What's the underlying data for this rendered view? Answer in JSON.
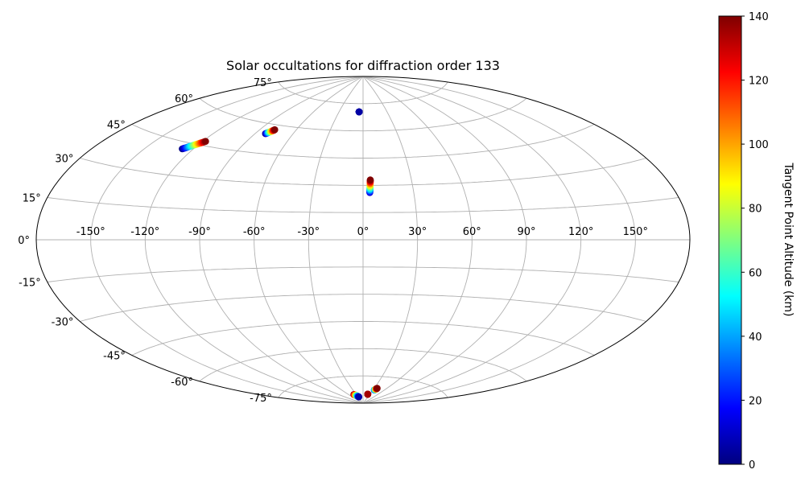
{
  "chart_data": {
    "type": "scatter",
    "projection": "aitoff",
    "title": "Solar occultations for diffraction order 133",
    "xlabel": "",
    "ylabel": "",
    "longitude_ticks": [
      "-150°",
      "-120°",
      "-90°",
      "-60°",
      "-30°",
      "0°",
      "30°",
      "60°",
      "90°",
      "120°",
      "150°"
    ],
    "latitude_ticks": [
      "75°",
      "60°",
      "45°",
      "30°",
      "15°",
      "0°",
      "-15°",
      "-30°",
      "-45°",
      "-60°",
      "-75°"
    ],
    "grid": true,
    "colorbar": {
      "label": "Tangent Point Altitude (km)",
      "range": [
        0,
        140
      ],
      "ticks": [
        "0",
        "20",
        "40",
        "60",
        "80",
        "100",
        "120",
        "140"
      ],
      "colormap": "jet"
    },
    "tracks": [
      {
        "lon_start": -127,
        "lat_start": 42,
        "lon_end": -118,
        "lat_end": 47,
        "alt_start": 0,
        "alt_end": 140
      },
      {
        "lon_start": -82,
        "lat_start": 55,
        "lon_end": -78,
        "lat_end": 57.5,
        "alt_start": 0,
        "alt_end": 140
      },
      {
        "lon_start": -5,
        "lat_start": 70.5,
        "lon_end": -5,
        "lat_end": 70.5,
        "alt_start": 5,
        "alt_end": 5
      },
      {
        "lon_start": 4,
        "lat_start": 26,
        "lon_end": 4.5,
        "lat_end": 33,
        "alt_start": 10,
        "alt_end": 140
      },
      {
        "lon_start": -40,
        "lat_start": -85,
        "lon_end": -25,
        "lat_end": -86.5,
        "alt_start": 140,
        "alt_end": 5
      },
      {
        "lon_start": 20,
        "lat_start": -85,
        "lon_end": 20,
        "lat_end": -85,
        "alt_start": 135,
        "alt_end": 135
      },
      {
        "lon_start": 33,
        "lat_start": -82.5,
        "lon_end": 37,
        "lat_end": -81.5,
        "alt_start": 25,
        "alt_end": 140
      }
    ]
  }
}
